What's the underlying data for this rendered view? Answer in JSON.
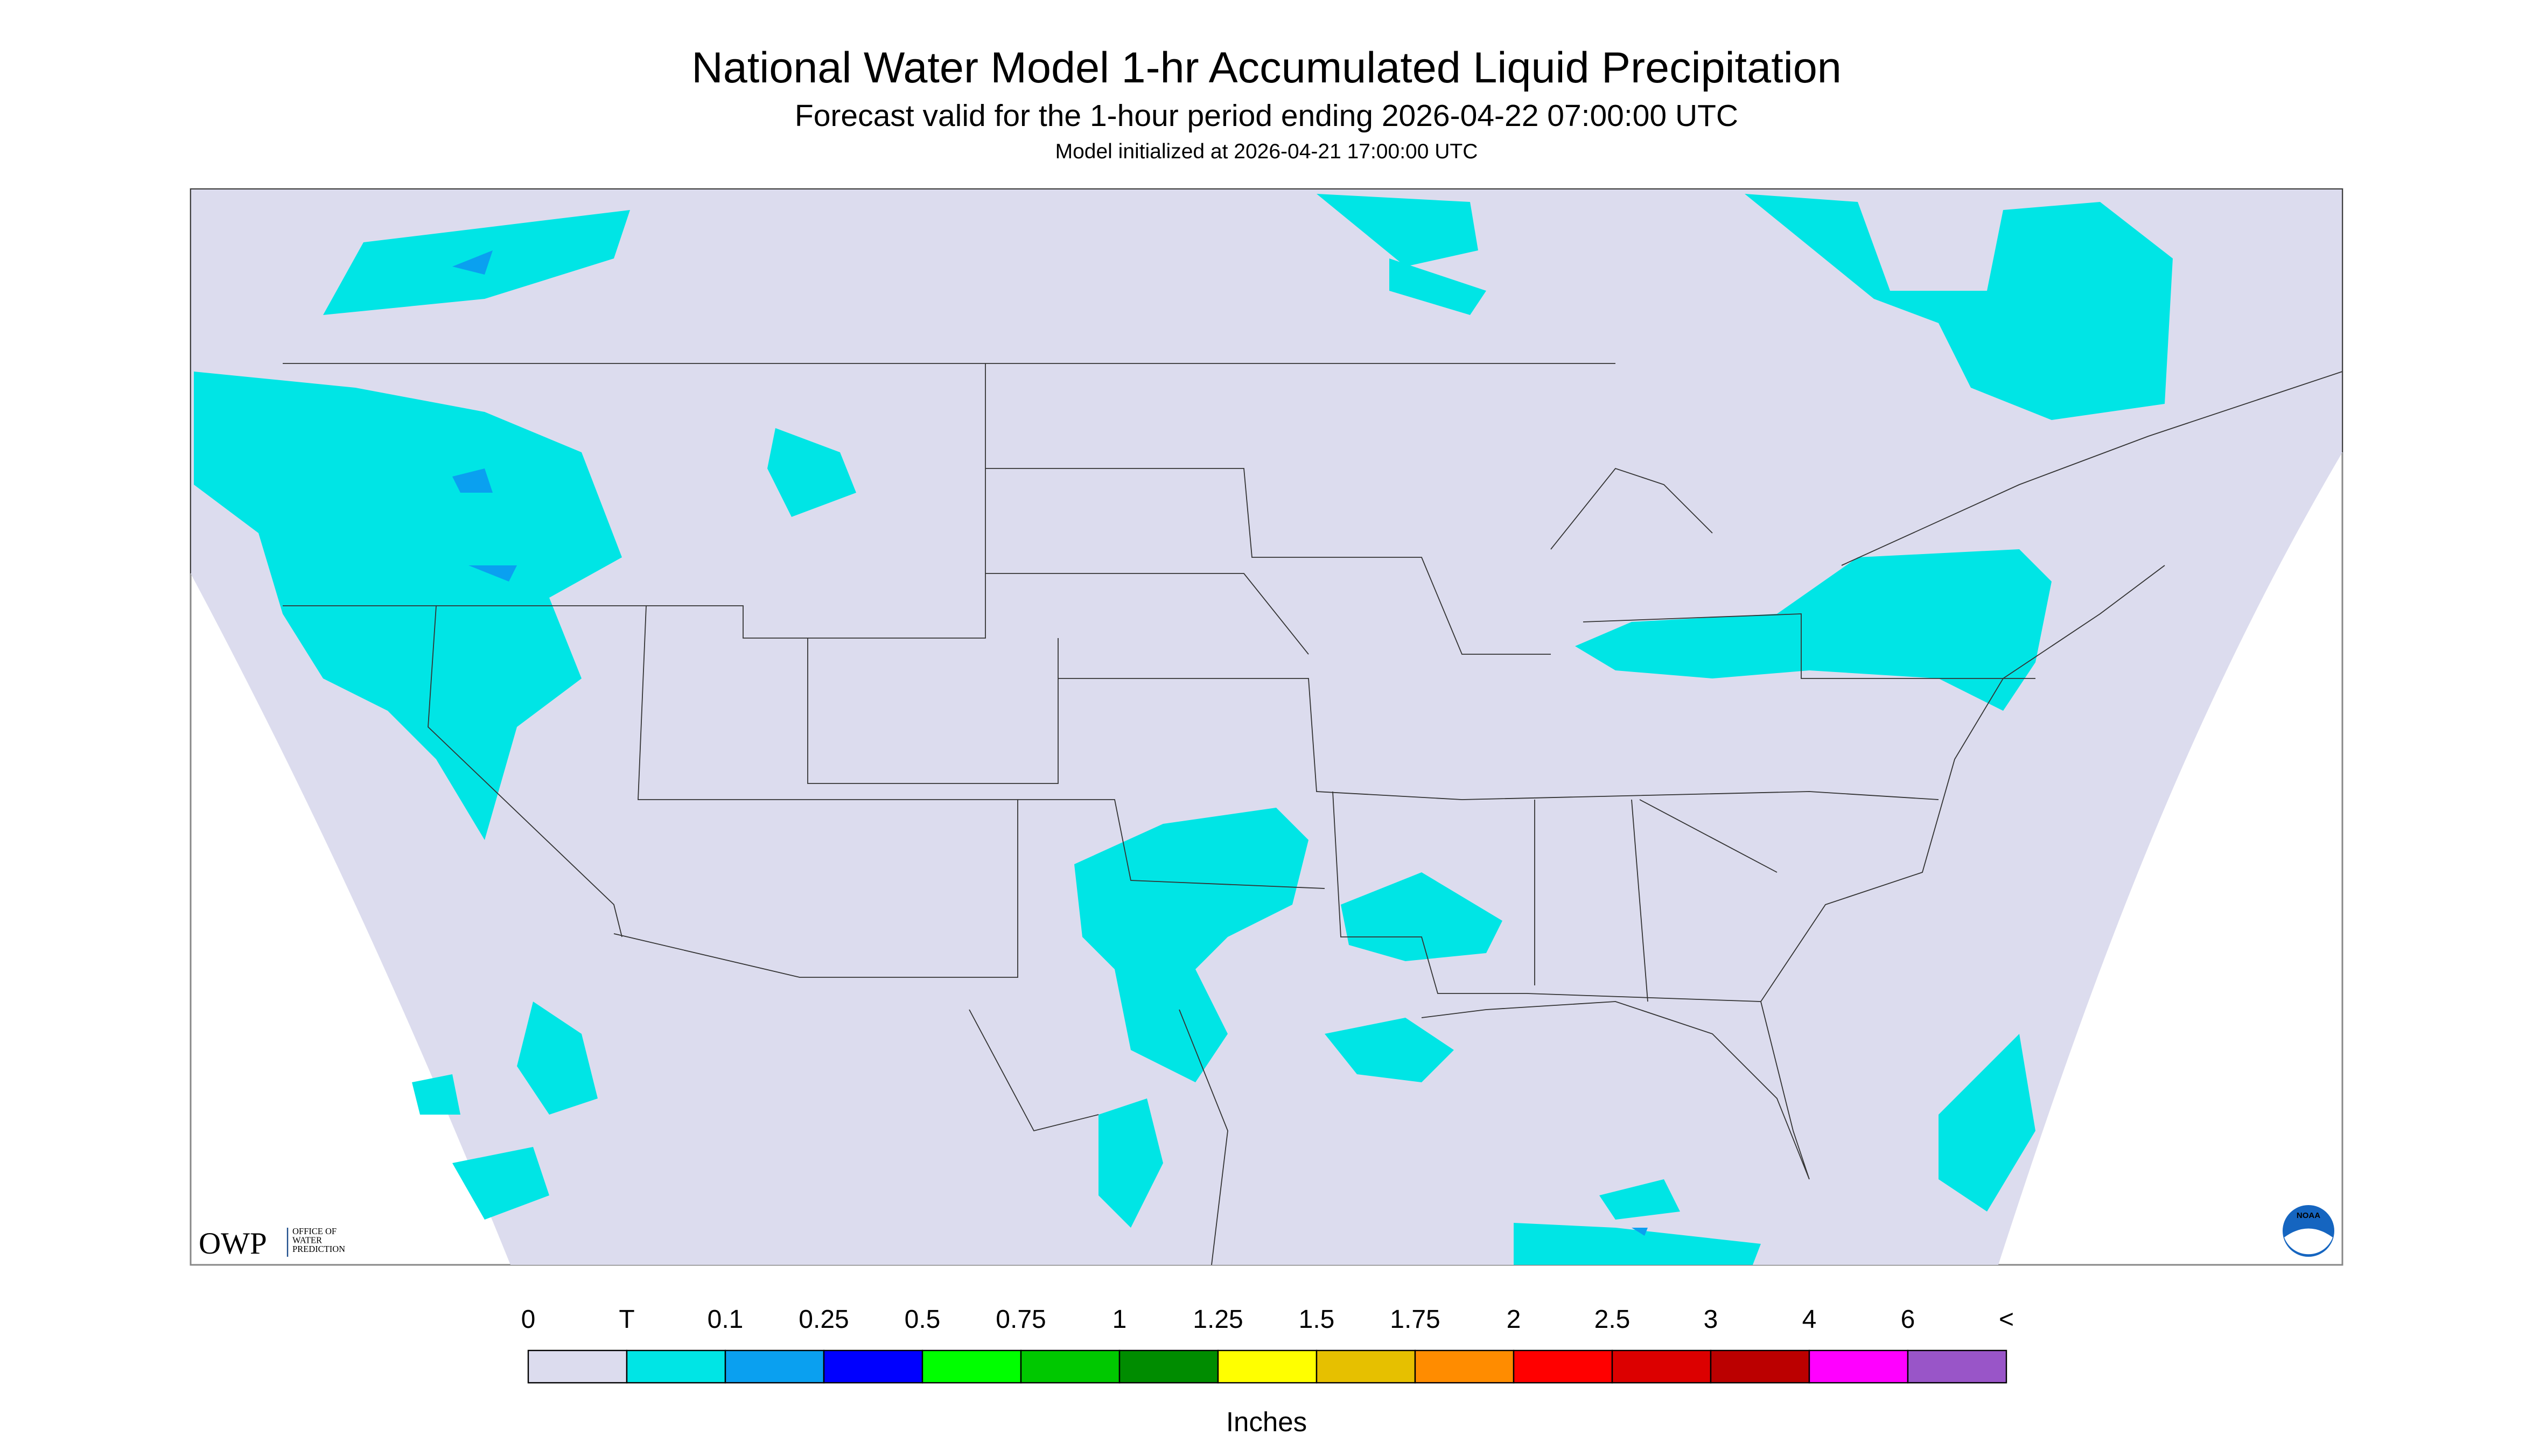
{
  "header": {
    "title": "National Water Model 1-hr Accumulated Liquid Precipitation",
    "subtitle": "Forecast valid for the 1-hour period ending 2026-04-22 07:00:00 UTC",
    "initialized": "Model initialized at 2026-04-21 17:00:00 UTC"
  },
  "legend": {
    "labels": [
      "0",
      "T",
      "0.1",
      "0.25",
      "0.5",
      "0.75",
      "1",
      "1.25",
      "1.5",
      "1.75",
      "2",
      "2.5",
      "3",
      "4",
      "6",
      "<"
    ],
    "colors": [
      "#dcdcee",
      "#00e5e5",
      "#0aa0f0",
      "#0000ff",
      "#00ff00",
      "#00c800",
      "#008c00",
      "#ffff00",
      "#e6c000",
      "#ff8c00",
      "#ff0000",
      "#dc0000",
      "#bb0000",
      "#ff00ff",
      "#9955c8"
    ],
    "unit": "Inches"
  },
  "logo": {
    "abbr": "OWP",
    "lines": [
      "OFFICE OF",
      "WATER",
      "PREDICTION"
    ],
    "noaa": "NOAA"
  }
}
